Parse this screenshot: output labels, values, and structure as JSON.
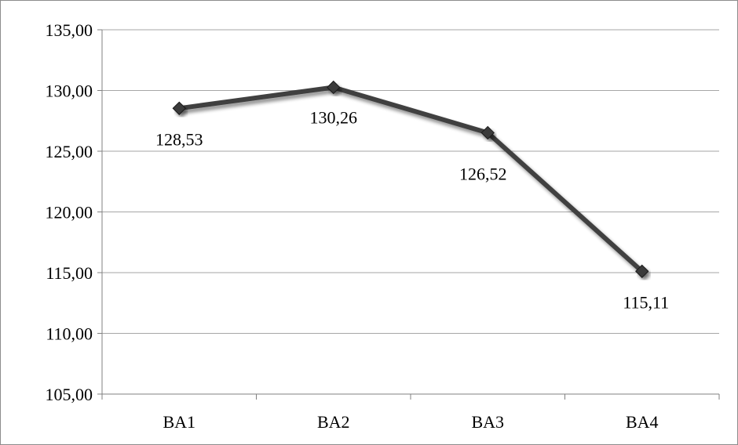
{
  "chart_data": {
    "type": "line",
    "categories": [
      "BA1",
      "BA2",
      "BA3",
      "BA4"
    ],
    "series": [
      {
        "values": [
          128.53,
          130.26,
          126.52,
          115.11
        ],
        "data_labels": [
          "128,53",
          "130,26",
          "126,52",
          "115,11"
        ],
        "color": "#404040",
        "marker": "diamond"
      }
    ],
    "y_ticks": [
      "105,00",
      "110,00",
      "115,00",
      "120,00",
      "125,00",
      "130,00",
      "135,00"
    ],
    "y_tick_values": [
      105,
      110,
      115,
      120,
      125,
      130,
      135
    ],
    "ylim": [
      105,
      135
    ],
    "grid": true,
    "legend": "none",
    "title": "",
    "xlabel": "",
    "ylabel": ""
  }
}
